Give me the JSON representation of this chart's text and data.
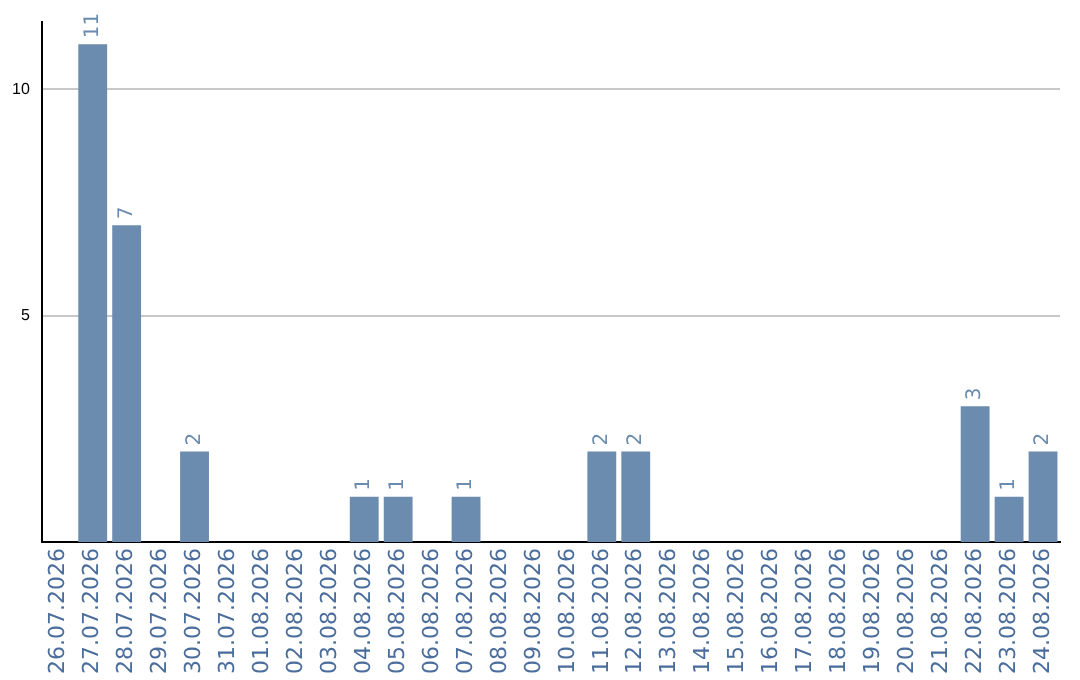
{
  "chart_data": {
    "type": "bar",
    "categories": [
      "26.07.2026",
      "27.07.2026",
      "28.07.2026",
      "29.07.2026",
      "30.07.2026",
      "31.07.2026",
      "01.08.2026",
      "02.08.2026",
      "03.08.2026",
      "04.08.2026",
      "05.08.2026",
      "06.08.2026",
      "07.08.2026",
      "08.08.2026",
      "09.08.2026",
      "10.08.2026",
      "11.08.2026",
      "12.08.2026",
      "13.08.2026",
      "14.08.2026",
      "15.08.2026",
      "16.08.2026",
      "17.08.2026",
      "18.08.2026",
      "19.08.2026",
      "20.08.2026",
      "21.08.2026",
      "22.08.2026",
      "23.08.2026",
      "24.08.2026"
    ],
    "values": [
      0,
      11,
      7,
      0,
      2,
      0,
      0,
      0,
      0,
      1,
      1,
      0,
      1,
      0,
      0,
      0,
      2,
      2,
      0,
      0,
      0,
      0,
      0,
      0,
      0,
      0,
      0,
      3,
      1,
      2
    ],
    "value_labels": [
      null,
      "11",
      "7",
      null,
      "2",
      null,
      null,
      null,
      null,
      "1",
      "1",
      null,
      "1",
      null,
      null,
      null,
      "2",
      "2",
      null,
      null,
      null,
      null,
      null,
      null,
      null,
      null,
      null,
      "3",
      "1",
      "2"
    ],
    "color": "#6b8cae",
    "ylim": [
      0,
      11.5
    ],
    "yticks": [
      5,
      10
    ],
    "grid": "y",
    "legend": false
  }
}
